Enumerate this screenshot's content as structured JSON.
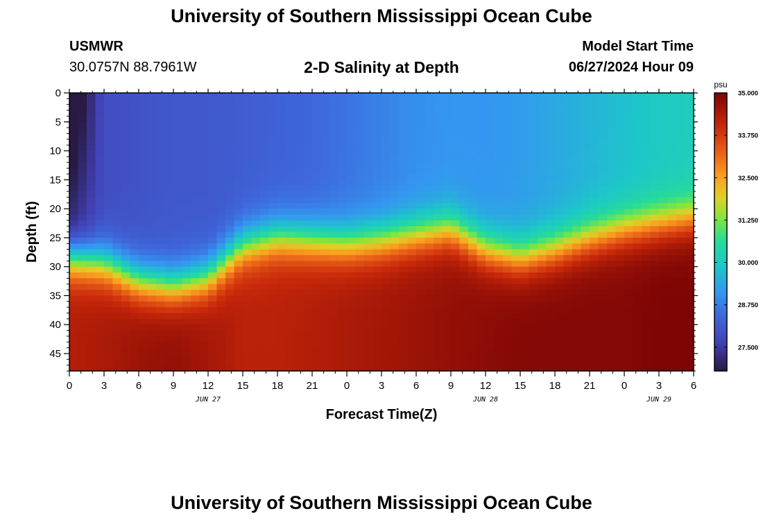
{
  "header": {
    "title": "University of Southern Mississippi Ocean Cube",
    "station": "USMWR",
    "coords": "30.0757N  88.7961W",
    "plot_title": "2-D Salinity at Depth",
    "start_label": "Model Start Time",
    "start_value": "06/27/2024 Hour 09"
  },
  "footer": {
    "title": "University of Southern Mississippi Ocean Cube"
  },
  "chart_data": {
    "type": "heatmap",
    "title": "2-D Salinity at Depth",
    "xlabel": "Forecast Time(Z)",
    "ylabel": "Depth (ft)",
    "x_range": [
      0,
      54
    ],
    "y_range": [
      0,
      48
    ],
    "x_ticks": [
      {
        "v": 0,
        "t": "0"
      },
      {
        "v": 3,
        "t": "3"
      },
      {
        "v": 6,
        "t": "6"
      },
      {
        "v": 9,
        "t": "9"
      },
      {
        "v": 12,
        "t": "12"
      },
      {
        "v": 15,
        "t": "15"
      },
      {
        "v": 18,
        "t": "18"
      },
      {
        "v": 21,
        "t": "21"
      },
      {
        "v": 24,
        "t": "0"
      },
      {
        "v": 27,
        "t": "3"
      },
      {
        "v": 30,
        "t": "6"
      },
      {
        "v": 33,
        "t": "9"
      },
      {
        "v": 36,
        "t": "12"
      },
      {
        "v": 39,
        "t": "15"
      },
      {
        "v": 42,
        "t": "18"
      },
      {
        "v": 45,
        "t": "21"
      },
      {
        "v": 48,
        "t": "0"
      },
      {
        "v": 51,
        "t": "3"
      },
      {
        "v": 54,
        "t": "6"
      }
    ],
    "y_ticks": [
      0,
      5,
      10,
      15,
      20,
      25,
      30,
      35,
      40,
      45
    ],
    "date_labels": [
      {
        "v": 12,
        "t": "JUN 27"
      },
      {
        "v": 36,
        "t": "JUN 28"
      },
      {
        "v": 51,
        "t": "JUN 29"
      }
    ],
    "colorbar": {
      "unit": "psu",
      "min": 26.8,
      "max": 35.0,
      "ticks": [
        {
          "v": 35.0,
          "t": "35.000"
        },
        {
          "v": 33.75,
          "t": "33.750"
        },
        {
          "v": 32.5,
          "t": "32.500"
        },
        {
          "v": 31.25,
          "t": "31.250"
        },
        {
          "v": 30.0,
          "t": "30.000"
        },
        {
          "v": 28.75,
          "t": "28.750"
        },
        {
          "v": 27.5,
          "t": "27.500"
        }
      ]
    },
    "halocline_depth_ft": [
      {
        "t": 0,
        "d": 28.5
      },
      {
        "t": 3,
        "d": 29.5
      },
      {
        "t": 6,
        "d": 32.5
      },
      {
        "t": 9,
        "d": 33.5
      },
      {
        "t": 12,
        "d": 32
      },
      {
        "t": 15,
        "d": 26.5
      },
      {
        "t": 18,
        "d": 25
      },
      {
        "t": 21,
        "d": 25.5
      },
      {
        "t": 24,
        "d": 26
      },
      {
        "t": 27,
        "d": 25.5
      },
      {
        "t": 30,
        "d": 24.5
      },
      {
        "t": 33,
        "d": 23.5
      },
      {
        "t": 36,
        "d": 27
      },
      {
        "t": 39,
        "d": 28.5
      },
      {
        "t": 42,
        "d": 27
      },
      {
        "t": 45,
        "d": 25
      },
      {
        "t": 48,
        "d": 23.5
      },
      {
        "t": 51,
        "d": 22.5
      },
      {
        "t": 54,
        "d": 21.5
      }
    ],
    "surface_salinity_psu": [
      {
        "t": 0,
        "s": 26.9
      },
      {
        "t": 3,
        "s": 27.9
      },
      {
        "t": 6,
        "s": 28.0
      },
      {
        "t": 9,
        "s": 28.1
      },
      {
        "t": 12,
        "s": 28.1
      },
      {
        "t": 15,
        "s": 28.2
      },
      {
        "t": 18,
        "s": 28.3
      },
      {
        "t": 21,
        "s": 28.4
      },
      {
        "t": 24,
        "s": 28.6
      },
      {
        "t": 27,
        "s": 28.8
      },
      {
        "t": 30,
        "s": 29.0
      },
      {
        "t": 33,
        "s": 29.1
      },
      {
        "t": 36,
        "s": 29.1
      },
      {
        "t": 39,
        "s": 29.2
      },
      {
        "t": 42,
        "s": 29.4
      },
      {
        "t": 45,
        "s": 29.6
      },
      {
        "t": 48,
        "s": 29.8
      },
      {
        "t": 51,
        "s": 30.0
      },
      {
        "t": 54,
        "s": 30.1
      }
    ],
    "bottom_salinity_psu": [
      {
        "t": 0,
        "s": 34.3
      },
      {
        "t": 3,
        "s": 34.4
      },
      {
        "t": 6,
        "s": 34.6
      },
      {
        "t": 9,
        "s": 34.7
      },
      {
        "t": 12,
        "s": 34.5
      },
      {
        "t": 15,
        "s": 34.2
      },
      {
        "t": 18,
        "s": 34.2
      },
      {
        "t": 21,
        "s": 34.3
      },
      {
        "t": 24,
        "s": 34.4
      },
      {
        "t": 27,
        "s": 34.5
      },
      {
        "t": 30,
        "s": 34.6
      },
      {
        "t": 33,
        "s": 34.7
      },
      {
        "t": 36,
        "s": 34.8
      },
      {
        "t": 39,
        "s": 34.9
      },
      {
        "t": 42,
        "s": 34.9
      },
      {
        "t": 45,
        "s": 34.9
      },
      {
        "t": 48,
        "s": 34.9
      },
      {
        "t": 51,
        "s": 35.0
      },
      {
        "t": 54,
        "s": 35.0
      }
    ]
  }
}
